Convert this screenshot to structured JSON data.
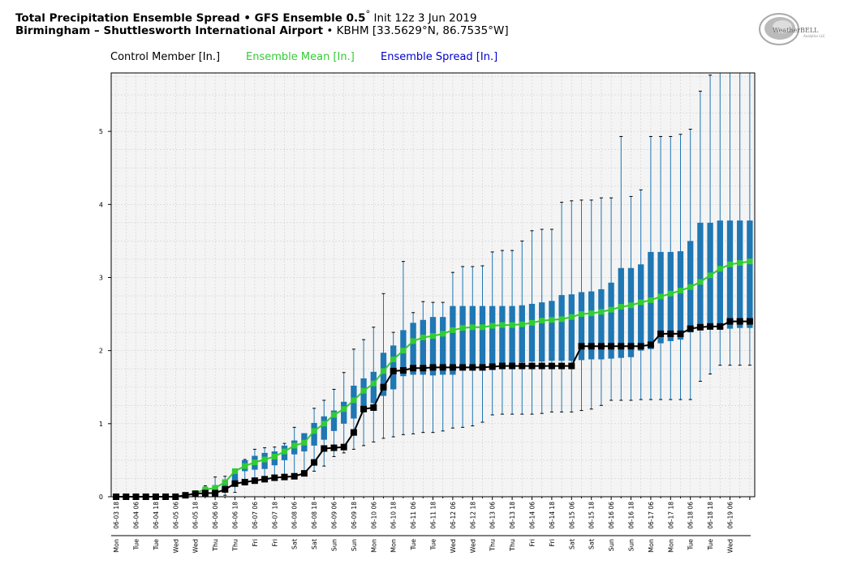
{
  "header": {
    "line1_bold": "Total Precipitation Ensemble Spread • GFS Ensemble 0.5",
    "line1_deg": "°",
    "line1_rest": " Init 12z 3 Jun 2019",
    "line2_bold": "Birmingham – Shuttlesworth International Airport",
    "line2_rest": " • KBHM [33.5629°N, 86.7535°W]"
  },
  "logo": {
    "text": "WeatherBELL",
    "small": "Analytics LLC",
    "icon": "swirl-logo-icon"
  },
  "legend": {
    "control": "Control Member [In.]",
    "mean": "Ensemble Mean [In.]",
    "spread": "Ensemble Spread [In.]"
  },
  "colors": {
    "control": "#000000",
    "mean": "#33cc33",
    "spread": "#1f77b4",
    "grid": "#d0d0d0",
    "plot_bg": "#f4f4f4"
  },
  "chart_data": {
    "type": "box",
    "ylim": [
      0,
      5.8
    ],
    "yticks": [
      0,
      1,
      2,
      3,
      4,
      5
    ],
    "grid": true,
    "x": [
      "06-03 18",
      "06-04 00",
      "06-04 06",
      "06-04 12",
      "06-04 18",
      "06-05 00",
      "06-05 06",
      "06-05 12",
      "06-05 18",
      "06-06 00",
      "06-06 06",
      "06-06 12",
      "06-06 18",
      "06-07 00",
      "06-07 06",
      "06-07 12",
      "06-07 18",
      "06-08 00",
      "06-08 06",
      "06-08 12",
      "06-08 18",
      "06-09 00",
      "06-09 06",
      "06-09 12",
      "06-09 18",
      "06-10 00",
      "06-10 06",
      "06-10 12",
      "06-10 18",
      "06-11 00",
      "06-11 06",
      "06-11 12",
      "06-11 18",
      "06-12 00",
      "06-12 06",
      "06-12 12",
      "06-12 18",
      "06-13 00",
      "06-13 06",
      "06-13 12",
      "06-13 18",
      "06-14 00",
      "06-14 06",
      "06-14 12",
      "06-14 18",
      "06-15 00",
      "06-15 06",
      "06-15 12",
      "06-15 18",
      "06-16 00",
      "06-16 06",
      "06-16 12",
      "06-16 18",
      "06-17 00",
      "06-17 06",
      "06-17 12",
      "06-17 18",
      "06-18 00",
      "06-18 06",
      "06-18 12",
      "06-18 18",
      "06-19 00",
      "06-19 06",
      "06-19 12",
      "06-19 18"
    ],
    "x_tick_labels": [
      "06-03 18",
      "06-04 06",
      "06-04 18",
      "06-05 06",
      "06-05 18",
      "06-06 06",
      "06-06 18",
      "06-07 06",
      "06-07 18",
      "06-08 06",
      "06-08 18",
      "06-09 06",
      "06-09 18",
      "06-10 06",
      "06-10 18",
      "06-11 06",
      "06-11 18",
      "06-12 06",
      "06-12 18",
      "06-13 06",
      "06-13 18",
      "06-14 06",
      "06-14 18",
      "06-15 06",
      "06-15 18",
      "06-16 06",
      "06-16 18",
      "06-17 06",
      "06-17 18",
      "06-18 06",
      "06-18 18",
      "06-19 06"
    ],
    "day_labels": [
      "Mon",
      "Tue",
      "Tue",
      "Wed",
      "Wed",
      "Thu",
      "Thu",
      "Fri",
      "Fri",
      "Sat",
      "Sat",
      "Sun",
      "Sun",
      "Mon",
      "Mon",
      "Tue",
      "Tue",
      "Wed",
      "Wed",
      "Thu",
      "Thu",
      "Fri",
      "Fri",
      "Sat",
      "Sat",
      "Sun",
      "Sun",
      "Mon",
      "Mon",
      "Tue",
      "Tue",
      "Wed"
    ],
    "control": [
      0,
      0,
      0,
      0,
      0,
      0,
      0,
      0.02,
      0.04,
      0.05,
      0.05,
      0.1,
      0.18,
      0.2,
      0.22,
      0.24,
      0.26,
      0.27,
      0.28,
      0.32,
      0.47,
      0.66,
      0.67,
      0.68,
      0.88,
      1.2,
      1.22,
      1.5,
      1.72,
      1.73,
      1.76,
      1.76,
      1.77,
      1.77,
      1.77,
      1.77,
      1.77,
      1.77,
      1.78,
      1.79,
      1.79,
      1.79,
      1.79,
      1.79,
      1.79,
      1.79,
      1.79,
      2.06,
      2.06,
      2.06,
      2.06,
      2.06,
      2.06,
      2.06,
      2.08,
      2.23,
      2.23,
      2.23,
      2.3,
      2.32,
      2.33,
      2.33,
      2.4,
      2.4,
      2.4
    ],
    "mean": [
      0,
      0,
      0,
      0,
      0,
      0,
      0,
      0.02,
      0.05,
      0.1,
      0.12,
      0.2,
      0.35,
      0.42,
      0.47,
      0.51,
      0.55,
      0.62,
      0.7,
      0.74,
      0.9,
      1.0,
      1.12,
      1.2,
      1.32,
      1.45,
      1.55,
      1.72,
      1.88,
      2.0,
      2.13,
      2.18,
      2.2,
      2.23,
      2.28,
      2.31,
      2.32,
      2.32,
      2.34,
      2.35,
      2.35,
      2.36,
      2.38,
      2.41,
      2.42,
      2.43,
      2.46,
      2.5,
      2.51,
      2.53,
      2.56,
      2.6,
      2.62,
      2.66,
      2.69,
      2.74,
      2.78,
      2.82,
      2.87,
      2.94,
      3.03,
      3.12,
      3.18,
      3.2,
      3.22
    ],
    "q1": [
      0,
      0,
      0,
      0,
      0,
      0,
      0,
      0,
      0.01,
      0.03,
      0.04,
      0.1,
      0.2,
      0.35,
      0.37,
      0.38,
      0.43,
      0.5,
      0.58,
      0.62,
      0.7,
      0.78,
      0.9,
      1.0,
      1.07,
      1.18,
      1.28,
      1.38,
      1.47,
      1.65,
      1.67,
      1.67,
      1.66,
      1.67,
      1.67,
      1.75,
      1.76,
      1.77,
      1.78,
      1.78,
      1.8,
      1.84,
      1.85,
      1.85,
      1.86,
      1.86,
      1.86,
      1.87,
      1.88,
      1.88,
      1.89,
      1.9,
      1.91,
      2.0,
      2.02,
      2.1,
      2.13,
      2.15,
      2.25,
      2.3,
      2.3,
      2.3,
      2.3,
      2.31,
      2.31
    ],
    "q3": [
      0,
      0,
      0,
      0,
      0,
      0,
      0,
      0.03,
      0.06,
      0.12,
      0.16,
      0.23,
      0.37,
      0.5,
      0.56,
      0.6,
      0.62,
      0.7,
      0.77,
      0.87,
      1.01,
      1.1,
      1.18,
      1.3,
      1.52,
      1.62,
      1.71,
      1.97,
      2.07,
      2.28,
      2.38,
      2.42,
      2.46,
      2.46,
      2.61,
      2.61,
      2.61,
      2.61,
      2.61,
      2.61,
      2.61,
      2.62,
      2.64,
      2.66,
      2.68,
      2.76,
      2.77,
      2.8,
      2.81,
      2.84,
      2.93,
      3.13,
      3.13,
      3.18,
      3.35,
      3.35,
      3.35,
      3.36,
      3.5,
      3.75,
      3.75,
      3.78,
      3.78,
      3.78,
      3.78
    ],
    "wmin": [
      0,
      0,
      0,
      0,
      0,
      0,
      0,
      0,
      0,
      0,
      0,
      0.02,
      0.06,
      0.2,
      0.22,
      0.24,
      0.25,
      0.27,
      0.28,
      0.3,
      0.35,
      0.42,
      0.55,
      0.6,
      0.65,
      0.7,
      0.75,
      0.8,
      0.82,
      0.85,
      0.86,
      0.88,
      0.88,
      0.9,
      0.94,
      0.95,
      0.97,
      1.02,
      1.12,
      1.13,
      1.13,
      1.13,
      1.13,
      1.14,
      1.16,
      1.16,
      1.16,
      1.18,
      1.2,
      1.25,
      1.32,
      1.32,
      1.32,
      1.33,
      1.33,
      1.33,
      1.33,
      1.33,
      1.33,
      1.58,
      1.68,
      1.8,
      1.8,
      1.8,
      1.8
    ],
    "wmax": [
      0,
      0,
      0,
      0,
      0,
      0,
      0,
      0.04,
      0.08,
      0.15,
      0.27,
      0.28,
      0.29,
      0.51,
      0.65,
      0.67,
      0.68,
      0.73,
      0.95,
      0.82,
      1.21,
      1.32,
      1.47,
      1.7,
      2.02,
      2.15,
      2.32,
      2.78,
      2.25,
      3.22,
      2.52,
      2.67,
      2.66,
      2.66,
      3.07,
      3.15,
      3.15,
      3.16,
      3.35,
      3.37,
      3.37,
      3.5,
      3.64,
      3.66,
      3.66,
      4.03,
      4.05,
      4.06,
      4.06,
      4.09,
      4.09,
      4.93,
      4.11,
      4.2,
      4.93,
      4.93,
      4.93,
      4.96,
      5.03,
      5.55,
      5.77,
      5.8,
      5.8,
      5.8,
      5.8
    ]
  }
}
